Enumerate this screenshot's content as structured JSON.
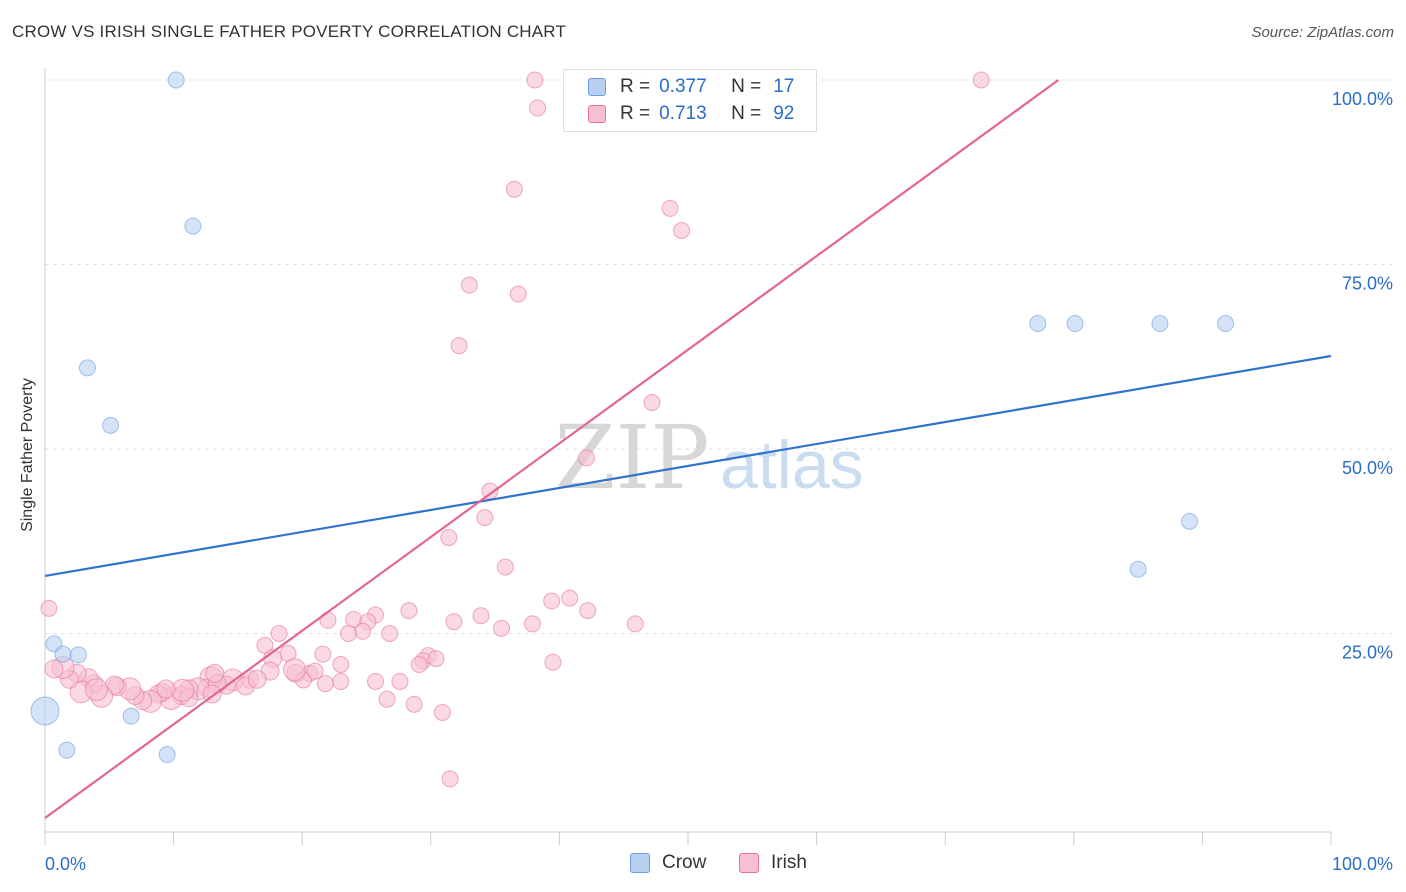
{
  "title": "CROW VS IRISH SINGLE FATHER POVERTY CORRELATION CHART",
  "source": "Source: ZipAtlas.com",
  "watermark": {
    "zip": "ZIP",
    "atlas": "atlas"
  },
  "legend": {
    "r_label": "R =",
    "n_label": "N =",
    "rows": [
      {
        "name": "Crow",
        "r": "0.377",
        "n": "17"
      },
      {
        "name": "Irish",
        "r": "0.713",
        "n": "92"
      }
    ]
  },
  "chart_data": {
    "type": "scatter",
    "title": "CROW VS IRISH SINGLE FATHER POVERTY CORRELATION CHART",
    "xlabel": "",
    "ylabel": "Single Father Poverty",
    "xlim": [
      0,
      100
    ],
    "ylim": [
      0,
      100
    ],
    "x_tick_labels": [
      "0.0%",
      "100.0%"
    ],
    "y_tick_labels": [
      "25.0%",
      "50.0%",
      "75.0%",
      "100.0%"
    ],
    "grid": true,
    "legend_position": "top-center",
    "series": [
      {
        "name": "Crow",
        "color": "#6a9ee0",
        "fill": "#b7d0f2",
        "regression": {
          "x": [
            0,
            100
          ],
          "y": [
            32.8,
            62.6
          ]
        },
        "points": [
          {
            "x": 10.2,
            "y": 100.0
          },
          {
            "x": 11.5,
            "y": 80.2
          },
          {
            "x": 3.3,
            "y": 61.0
          },
          {
            "x": 5.1,
            "y": 53.2
          },
          {
            "x": 0.7,
            "y": 23.6
          },
          {
            "x": 1.4,
            "y": 22.2
          },
          {
            "x": 2.6,
            "y": 22.1
          },
          {
            "x": 0.0,
            "y": 14.5
          },
          {
            "x": 6.7,
            "y": 13.8
          },
          {
            "x": 1.7,
            "y": 9.2
          },
          {
            "x": 9.5,
            "y": 8.6
          },
          {
            "x": 77.2,
            "y": 67.0
          },
          {
            "x": 80.1,
            "y": 67.0
          },
          {
            "x": 86.7,
            "y": 67.0
          },
          {
            "x": 91.8,
            "y": 67.0
          },
          {
            "x": 89.0,
            "y": 40.2
          },
          {
            "x": 85.0,
            "y": 33.7
          }
        ]
      },
      {
        "name": "Irish",
        "color": "#e8739c",
        "fill": "#f7bfd0",
        "regression": {
          "x": [
            0,
            78.8
          ],
          "y": [
            0,
            100
          ]
        },
        "points": [
          {
            "x": 38.1,
            "y": 100.0
          },
          {
            "x": 45.8,
            "y": 100.0
          },
          {
            "x": 72.8,
            "y": 100.0
          },
          {
            "x": 38.3,
            "y": 96.2
          },
          {
            "x": 36.5,
            "y": 85.2
          },
          {
            "x": 48.6,
            "y": 82.6
          },
          {
            "x": 49.5,
            "y": 79.6
          },
          {
            "x": 33.0,
            "y": 72.2
          },
          {
            "x": 36.8,
            "y": 71.0
          },
          {
            "x": 32.2,
            "y": 64.0
          },
          {
            "x": 47.2,
            "y": 56.3
          },
          {
            "x": 42.1,
            "y": 48.8
          },
          {
            "x": 34.6,
            "y": 44.3
          },
          {
            "x": 34.2,
            "y": 40.7
          },
          {
            "x": 31.4,
            "y": 38.0
          },
          {
            "x": 35.8,
            "y": 34.0
          },
          {
            "x": 39.4,
            "y": 29.4
          },
          {
            "x": 40.8,
            "y": 29.8
          },
          {
            "x": 42.2,
            "y": 28.1
          },
          {
            "x": 45.9,
            "y": 26.3
          },
          {
            "x": 28.3,
            "y": 28.1
          },
          {
            "x": 33.9,
            "y": 27.4
          },
          {
            "x": 31.8,
            "y": 26.6
          },
          {
            "x": 25.7,
            "y": 27.5
          },
          {
            "x": 24.0,
            "y": 26.9
          },
          {
            "x": 22.0,
            "y": 26.8
          },
          {
            "x": 25.1,
            "y": 26.6
          },
          {
            "x": 24.7,
            "y": 25.3
          },
          {
            "x": 23.6,
            "y": 25.0
          },
          {
            "x": 35.5,
            "y": 25.7
          },
          {
            "x": 37.9,
            "y": 26.3
          },
          {
            "x": 26.8,
            "y": 25.0
          },
          {
            "x": 0.3,
            "y": 28.4
          },
          {
            "x": 18.2,
            "y": 25.0
          },
          {
            "x": 17.1,
            "y": 23.4
          },
          {
            "x": 18.9,
            "y": 22.3
          },
          {
            "x": 21.6,
            "y": 22.2
          },
          {
            "x": 17.7,
            "y": 21.6
          },
          {
            "x": 29.8,
            "y": 22.0
          },
          {
            "x": 29.4,
            "y": 21.3
          },
          {
            "x": 23.0,
            "y": 20.8
          },
          {
            "x": 39.5,
            "y": 21.1
          },
          {
            "x": 29.1,
            "y": 20.8
          },
          {
            "x": 17.5,
            "y": 19.9
          },
          {
            "x": 19.5,
            "y": 19.6
          },
          {
            "x": 20.6,
            "y": 19.6
          },
          {
            "x": 20.1,
            "y": 18.7
          },
          {
            "x": 21.8,
            "y": 18.2
          },
          {
            "x": 25.7,
            "y": 18.5
          },
          {
            "x": 27.6,
            "y": 18.5
          },
          {
            "x": 15.9,
            "y": 18.8
          },
          {
            "x": 14.6,
            "y": 18.7
          },
          {
            "x": 14.1,
            "y": 18.0
          },
          {
            "x": 15.6,
            "y": 17.9
          },
          {
            "x": 12.9,
            "y": 19.0
          },
          {
            "x": 12.6,
            "y": 17.6
          },
          {
            "x": 13.4,
            "y": 18.2
          },
          {
            "x": 11.9,
            "y": 17.5
          },
          {
            "x": 11.2,
            "y": 17.5
          },
          {
            "x": 10.6,
            "y": 16.6
          },
          {
            "x": 9.8,
            "y": 16.2
          },
          {
            "x": 9.1,
            "y": 17.0
          },
          {
            "x": 8.8,
            "y": 16.8
          },
          {
            "x": 8.2,
            "y": 15.8
          },
          {
            "x": 7.6,
            "y": 15.9
          },
          {
            "x": 7.0,
            "y": 16.6
          },
          {
            "x": 6.6,
            "y": 17.5
          },
          {
            "x": 5.6,
            "y": 17.8
          },
          {
            "x": 5.4,
            "y": 18.0
          },
          {
            "x": 4.4,
            "y": 16.5
          },
          {
            "x": 3.8,
            "y": 18.2
          },
          {
            "x": 3.4,
            "y": 19.0
          },
          {
            "x": 2.8,
            "y": 17.1
          },
          {
            "x": 2.5,
            "y": 19.6
          },
          {
            "x": 1.9,
            "y": 18.8
          },
          {
            "x": 1.4,
            "y": 20.4
          },
          {
            "x": 0.7,
            "y": 20.2
          },
          {
            "x": 11.2,
            "y": 16.3
          },
          {
            "x": 10.7,
            "y": 17.3
          },
          {
            "x": 9.4,
            "y": 17.5
          },
          {
            "x": 13.0,
            "y": 16.8
          },
          {
            "x": 4.0,
            "y": 17.4
          },
          {
            "x": 16.5,
            "y": 18.8
          },
          {
            "x": 26.6,
            "y": 16.1
          },
          {
            "x": 28.7,
            "y": 15.4
          },
          {
            "x": 30.9,
            "y": 14.3
          },
          {
            "x": 31.5,
            "y": 5.3
          },
          {
            "x": 30.4,
            "y": 21.6
          },
          {
            "x": 23.0,
            "y": 18.5
          },
          {
            "x": 13.2,
            "y": 19.6
          },
          {
            "x": 19.4,
            "y": 20.1
          },
          {
            "x": 21.0,
            "y": 19.9
          }
        ]
      }
    ]
  }
}
